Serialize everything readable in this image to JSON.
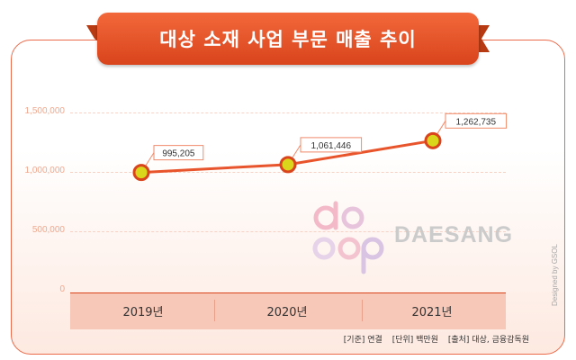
{
  "header": {
    "title": "대상 소재 사업 부문 매출 추이"
  },
  "chart_data": {
    "type": "line",
    "title": "대상 소재 사업 부문 매출 추이",
    "categories": [
      "2019년",
      "2020년",
      "2021년"
    ],
    "values": [
      995205,
      1061446,
      1262735
    ],
    "value_labels": [
      "995,205",
      "1,061,446",
      "1,262,735"
    ],
    "y_ticks": [
      0,
      500000,
      1000000,
      1500000
    ],
    "y_tick_labels": [
      "0",
      "500,000",
      "1,000,000",
      "1,500,000"
    ],
    "ylim": [
      0,
      1500000
    ],
    "grid": true,
    "legend": "none"
  },
  "footer": {
    "basis": "[기준] 연결",
    "unit": "[단위] 백만원",
    "source": "[출처] 대상, 금융감독원"
  },
  "credit": "Designed by GSOL",
  "watermark": {
    "logo_text": "daesang",
    "word": "DAESANG"
  },
  "colors": {
    "accent": "#d9441c",
    "line": "#e8552c",
    "marker_fill": "#d9d61c",
    "label_border": "#f08a6a",
    "category_bar": "#f7c7b7"
  }
}
